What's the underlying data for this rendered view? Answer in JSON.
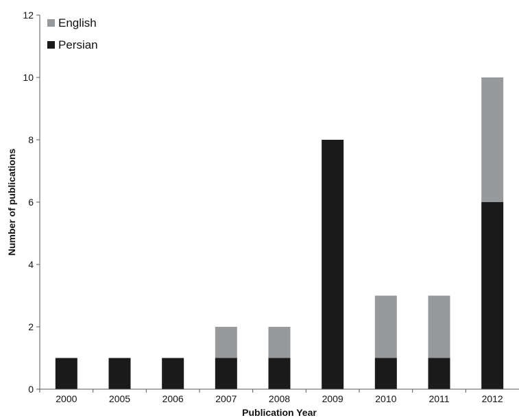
{
  "chart_data": {
    "type": "bar",
    "stacked": true,
    "categories": [
      "2000",
      "2005",
      "2006",
      "2007",
      "2008",
      "2009",
      "2010",
      "2011",
      "2012"
    ],
    "series": [
      {
        "name": "Persian",
        "values": [
          1,
          1,
          1,
          1,
          1,
          8,
          1,
          1,
          6
        ],
        "color": "#1a1a1a"
      },
      {
        "name": "English",
        "values": [
          0,
          0,
          0,
          1,
          1,
          0,
          2,
          2,
          4
        ],
        "color": "#98999b"
      }
    ],
    "xlabel": "Publication Year",
    "ylabel": "Number of publications",
    "ylim": [
      0,
      12
    ],
    "yticks": [
      0,
      2,
      4,
      6,
      8,
      10,
      12
    ],
    "grid": false,
    "legend_position": "top-left",
    "legend_order": [
      "English",
      "Persian"
    ]
  }
}
